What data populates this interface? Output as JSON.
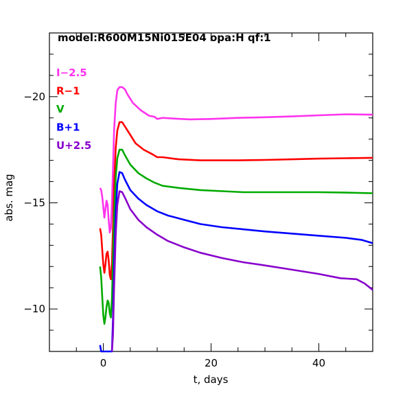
{
  "chart_data": {
    "type": "line",
    "title": "model:R600M15Ni015E04  opa:H  qf:1",
    "xlabel": "t, days",
    "ylabel": "abs. mag",
    "xlim": [
      -10,
      50
    ],
    "ylim": [
      -8,
      -23
    ],
    "y_inverted": true,
    "grid": false,
    "legend_position": "top-left",
    "x_ticks": [
      0,
      20,
      40
    ],
    "x_tick_labels": [
      "0",
      "20",
      "40"
    ],
    "y_ticks": [
      -20,
      -15,
      -10
    ],
    "y_tick_labels": [
      "−20",
      "−15",
      "−10"
    ],
    "series": [
      {
        "name": "I−2.5",
        "color": "#ff33ee",
        "points": [
          [
            -0.6,
            -15.7
          ],
          [
            -0.4,
            -15.6
          ],
          [
            -0.2,
            -15.3
          ],
          [
            0,
            -14.8
          ],
          [
            0.2,
            -14.3
          ],
          [
            0.4,
            -14.7
          ],
          [
            0.6,
            -15.1
          ],
          [
            0.8,
            -14.9
          ],
          [
            1.0,
            -14.2
          ],
          [
            1.2,
            -13.6
          ],
          [
            1.4,
            -13.8
          ],
          [
            1.6,
            -15.0
          ],
          [
            1.8,
            -16.6
          ],
          [
            2.0,
            -18.4
          ],
          [
            2.3,
            -19.7
          ],
          [
            2.6,
            -20.3
          ],
          [
            3.0,
            -20.45
          ],
          [
            3.5,
            -20.45
          ],
          [
            4.0,
            -20.35
          ],
          [
            4.5,
            -20.1
          ],
          [
            5.5,
            -19.7
          ],
          [
            7,
            -19.35
          ],
          [
            8.5,
            -19.1
          ],
          [
            9.5,
            -19.05
          ],
          [
            10,
            -18.95
          ],
          [
            11,
            -19.0
          ],
          [
            13,
            -18.97
          ],
          [
            16,
            -18.93
          ],
          [
            20,
            -18.95
          ],
          [
            25,
            -19.0
          ],
          [
            30,
            -19.03
          ],
          [
            35,
            -19.07
          ],
          [
            40,
            -19.12
          ],
          [
            45,
            -19.17
          ],
          [
            50,
            -19.15
          ]
        ]
      },
      {
        "name": "R−1",
        "color": "#ff0000",
        "points": [
          [
            -0.6,
            -13.8
          ],
          [
            -0.4,
            -13.5
          ],
          [
            -0.2,
            -12.8
          ],
          [
            0,
            -12.1
          ],
          [
            0.2,
            -11.7
          ],
          [
            0.4,
            -12.1
          ],
          [
            0.6,
            -12.6
          ],
          [
            0.8,
            -12.7
          ],
          [
            1.0,
            -12.3
          ],
          [
            1.2,
            -11.6
          ],
          [
            1.4,
            -11.4
          ],
          [
            1.6,
            -12.2
          ],
          [
            1.8,
            -13.8
          ],
          [
            2.0,
            -15.8
          ],
          [
            2.3,
            -17.6
          ],
          [
            2.6,
            -18.4
          ],
          [
            3.0,
            -18.8
          ],
          [
            3.5,
            -18.8
          ],
          [
            4.0,
            -18.6
          ],
          [
            5,
            -18.2
          ],
          [
            6,
            -17.8
          ],
          [
            7.5,
            -17.5
          ],
          [
            9,
            -17.3
          ],
          [
            10,
            -17.15
          ],
          [
            11,
            -17.15
          ],
          [
            14,
            -17.05
          ],
          [
            18,
            -17.0
          ],
          [
            25,
            -17.0
          ],
          [
            30,
            -17.02
          ],
          [
            35,
            -17.05
          ],
          [
            40,
            -17.08
          ],
          [
            45,
            -17.1
          ],
          [
            50,
            -17.12
          ]
        ]
      },
      {
        "name": "V",
        "color": "#00aa00",
        "points": [
          [
            -0.6,
            -12.0
          ],
          [
            -0.4,
            -11.5
          ],
          [
            -0.2,
            -10.6
          ],
          [
            0,
            -9.7
          ],
          [
            0.2,
            -9.3
          ],
          [
            0.4,
            -9.6
          ],
          [
            0.6,
            -10.1
          ],
          [
            0.8,
            -10.4
          ],
          [
            1.0,
            -10.3
          ],
          [
            1.2,
            -9.8
          ],
          [
            1.4,
            -9.6
          ],
          [
            1.6,
            -10.5
          ],
          [
            1.8,
            -12.3
          ],
          [
            2.0,
            -14.3
          ],
          [
            2.3,
            -16.2
          ],
          [
            2.6,
            -17.1
          ],
          [
            3.0,
            -17.5
          ],
          [
            3.5,
            -17.5
          ],
          [
            4.0,
            -17.25
          ],
          [
            5,
            -16.8
          ],
          [
            6.5,
            -16.4
          ],
          [
            8,
            -16.15
          ],
          [
            9.5,
            -15.95
          ],
          [
            11,
            -15.8
          ],
          [
            14,
            -15.7
          ],
          [
            18,
            -15.6
          ],
          [
            22,
            -15.55
          ],
          [
            26,
            -15.5
          ],
          [
            30,
            -15.5
          ],
          [
            35,
            -15.5
          ],
          [
            40,
            -15.5
          ],
          [
            45,
            -15.48
          ],
          [
            50,
            -15.45
          ]
        ]
      },
      {
        "name": "B+1",
        "color": "#0000ff",
        "points": [
          [
            -0.6,
            -8.3
          ],
          [
            -0.4,
            -7.9
          ],
          [
            -0.2,
            -7.5
          ],
          [
            1.6,
            -7.5
          ],
          [
            1.8,
            -9.5
          ],
          [
            2.0,
            -12.0
          ],
          [
            2.3,
            -14.5
          ],
          [
            2.6,
            -15.9
          ],
          [
            3.0,
            -16.45
          ],
          [
            3.5,
            -16.4
          ],
          [
            4.0,
            -16.1
          ],
          [
            5,
            -15.6
          ],
          [
            6.5,
            -15.2
          ],
          [
            8,
            -14.9
          ],
          [
            10,
            -14.6
          ],
          [
            12,
            -14.4
          ],
          [
            15,
            -14.2
          ],
          [
            18,
            -14.0
          ],
          [
            22,
            -13.85
          ],
          [
            26,
            -13.75
          ],
          [
            30,
            -13.65
          ],
          [
            35,
            -13.55
          ],
          [
            40,
            -13.45
          ],
          [
            45,
            -13.35
          ],
          [
            48,
            -13.25
          ],
          [
            50,
            -13.1
          ]
        ]
      },
      {
        "name": "U+2.5",
        "color": "#8800cc",
        "points": [
          [
            1.6,
            -7.5
          ],
          [
            1.8,
            -8.8
          ],
          [
            2.0,
            -11.0
          ],
          [
            2.3,
            -13.5
          ],
          [
            2.6,
            -14.9
          ],
          [
            3.0,
            -15.55
          ],
          [
            3.5,
            -15.5
          ],
          [
            4.0,
            -15.25
          ],
          [
            5,
            -14.7
          ],
          [
            6.5,
            -14.2
          ],
          [
            8,
            -13.85
          ],
          [
            10,
            -13.5
          ],
          [
            12,
            -13.2
          ],
          [
            15,
            -12.9
          ],
          [
            18,
            -12.65
          ],
          [
            22,
            -12.4
          ],
          [
            26,
            -12.2
          ],
          [
            30,
            -12.05
          ],
          [
            35,
            -11.85
          ],
          [
            40,
            -11.65
          ],
          [
            44,
            -11.45
          ],
          [
            47,
            -11.4
          ],
          [
            48.5,
            -11.2
          ],
          [
            50,
            -10.9
          ]
        ]
      }
    ]
  }
}
